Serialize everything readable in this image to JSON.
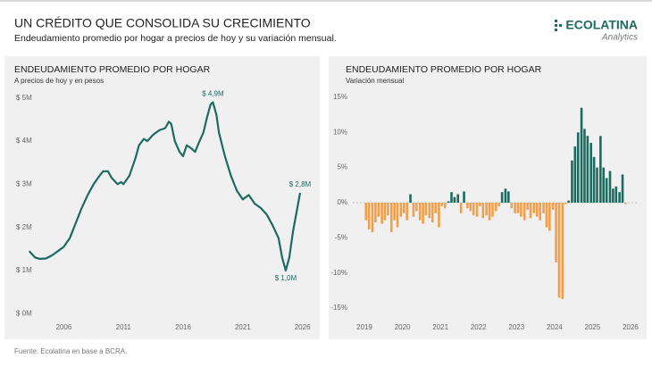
{
  "header": {
    "title": "UN CRÉDITO QUE CONSOLIDA SU CRECIMIENTO",
    "subtitle": "Endeudamiento promedio por hogar a precios de hoy y su variación mensual.",
    "logo": "ECOLATINA",
    "logo_sub": "Analytics"
  },
  "footer": {
    "source": "Fuente: Ecolatina en base a BCRA."
  },
  "chart_data": [
    {
      "type": "line",
      "title": "ENDEUDAMIENTO PROMEDIO POR HOGAR",
      "subtitle": "A precios de hoy y en pesos",
      "color": "#1d6b60",
      "x": [
        2003.1,
        2003.6,
        2004.0,
        2004.5,
        2005.0,
        2005.5,
        2006.0,
        2006.5,
        2007.0,
        2007.5,
        2008.0,
        2008.5,
        2009.0,
        2009.3,
        2009.7,
        2010.0,
        2010.5,
        2010.8,
        2011.0,
        2011.5,
        2012.0,
        2012.3,
        2012.7,
        2013.0,
        2013.5,
        2014.0,
        2014.5,
        2014.8,
        2015.0,
        2015.3,
        2015.7,
        2016.0,
        2016.3,
        2016.6,
        2017.0,
        2017.3,
        2017.7,
        2018.0,
        2018.3,
        2018.5,
        2018.8,
        2019.0,
        2019.5,
        2020.0,
        2020.5,
        2021.0,
        2021.5,
        2022.0,
        2022.5,
        2023.0,
        2023.5,
        2024.0,
        2024.3,
        2024.6,
        2024.9,
        2025.2,
        2025.5,
        2025.8
      ],
      "values": [
        1.45,
        1.3,
        1.27,
        1.28,
        1.35,
        1.45,
        1.55,
        1.75,
        2.1,
        2.45,
        2.75,
        3.0,
        3.2,
        3.3,
        3.3,
        3.15,
        3.0,
        3.05,
        3.0,
        3.2,
        3.6,
        3.9,
        4.05,
        4.0,
        4.15,
        4.25,
        4.3,
        4.45,
        4.4,
        4.0,
        3.75,
        3.65,
        3.9,
        3.85,
        3.75,
        3.95,
        4.2,
        4.55,
        4.85,
        4.9,
        4.6,
        4.2,
        3.65,
        3.2,
        2.85,
        2.65,
        2.75,
        2.55,
        2.45,
        2.3,
        2.05,
        1.75,
        1.3,
        1.0,
        1.3,
        1.9,
        2.35,
        2.8
      ],
      "annotations": [
        {
          "x": 2018.5,
          "y": 4.9,
          "label": "$ 4,9M"
        },
        {
          "x": 2024.6,
          "y": 1.0,
          "label": "$ 1,0M"
        },
        {
          "x": 2025.8,
          "y": 2.8,
          "label": "$ 2,8M"
        }
      ],
      "xlim": [
        2002,
        2027
      ],
      "xticks": [
        2006,
        2011,
        2016,
        2021,
        2026
      ],
      "ylim": [
        -0.2,
        5.2
      ],
      "yticks": [
        {
          "value": 0,
          "label": "$ 0M"
        },
        {
          "value": 1,
          "label": "$ 1M"
        },
        {
          "value": 2,
          "label": "$ 2M"
        },
        {
          "value": 3,
          "label": "$ 3M"
        },
        {
          "value": 4,
          "label": "$ 4M"
        },
        {
          "value": 5,
          "label": "$ 5M"
        }
      ]
    },
    {
      "type": "bar",
      "title": "ENDEUDAMIENTO PROMEDIO POR HOGAR",
      "subtitle": "Variación mensual",
      "positive_color": "#1d6b60",
      "negative_color": "#f0a04b",
      "x": [
        2019.04,
        2019.12,
        2019.21,
        2019.29,
        2019.37,
        2019.46,
        2019.54,
        2019.62,
        2019.71,
        2019.79,
        2019.87,
        2019.96,
        2020.04,
        2020.12,
        2020.21,
        2020.29,
        2020.37,
        2020.46,
        2020.54,
        2020.62,
        2020.71,
        2020.79,
        2020.87,
        2020.96,
        2021.04,
        2021.12,
        2021.21,
        2021.29,
        2021.37,
        2021.46,
        2021.54,
        2021.62,
        2021.71,
        2021.79,
        2021.87,
        2021.96,
        2022.04,
        2022.12,
        2022.21,
        2022.29,
        2022.37,
        2022.46,
        2022.54,
        2022.62,
        2022.71,
        2022.79,
        2022.87,
        2022.96,
        2023.04,
        2023.12,
        2023.21,
        2023.29,
        2023.37,
        2023.46,
        2023.54,
        2023.62,
        2023.71,
        2023.79,
        2023.87,
        2023.96,
        2024.04,
        2024.12,
        2024.21,
        2024.29,
        2024.37,
        2024.46,
        2024.54,
        2024.62,
        2024.71,
        2024.79,
        2024.87,
        2024.96,
        2025.04,
        2025.12,
        2025.21,
        2025.29,
        2025.37,
        2025.46,
        2025.54,
        2025.62,
        2025.71,
        2025.79,
        2025.87
      ],
      "values": [
        -2.5,
        -3.8,
        -4.2,
        -2.8,
        -2.0,
        -3.0,
        -2.5,
        -1.8,
        -4.2,
        -2.5,
        -3.5,
        -2.0,
        -1.5,
        -2.5,
        1.2,
        -2.0,
        -1.2,
        -2.5,
        -3.0,
        -1.8,
        -2.2,
        -2.8,
        -1.5,
        -3.5,
        -0.5,
        -0.8,
        0.2,
        1.5,
        0.8,
        1.2,
        -1.5,
        1.6,
        -0.8,
        -1.2,
        -1.8,
        -2.0,
        -0.5,
        -2.2,
        -1.8,
        -2.5,
        -2.0,
        -1.2,
        -0.5,
        1.5,
        2.0,
        1.6,
        -0.8,
        -1.5,
        -1.5,
        -2.0,
        -2.5,
        -1.0,
        -2.2,
        -1.5,
        -2.0,
        -2.5,
        -1.5,
        -3.5,
        -4.0,
        -1.0,
        -8.5,
        -13.5,
        -13.7,
        -0.2,
        0.3,
        6.0,
        8.0,
        10.0,
        13.5,
        10.5,
        9.5,
        8.5,
        6.5,
        5.0,
        9.5,
        5.0,
        3.5,
        4.5,
        2.0,
        2.3,
        1.5,
        4.0,
        -0.2
      ],
      "xlim": [
        2018.6,
        2026.4
      ],
      "xticks": [
        2019,
        2020,
        2021,
        2022,
        2023,
        2024,
        2025,
        2026
      ],
      "ylim": [
        -16,
        16
      ],
      "yticks": [
        {
          "value": -15,
          "label": "-15%"
        },
        {
          "value": -10,
          "label": "-10%"
        },
        {
          "value": -5,
          "label": "-5%"
        },
        {
          "value": 0,
          "label": "0%"
        },
        {
          "value": 5,
          "label": "5%"
        },
        {
          "value": 10,
          "label": "10%"
        },
        {
          "value": 15,
          "label": "15%"
        }
      ]
    }
  ]
}
